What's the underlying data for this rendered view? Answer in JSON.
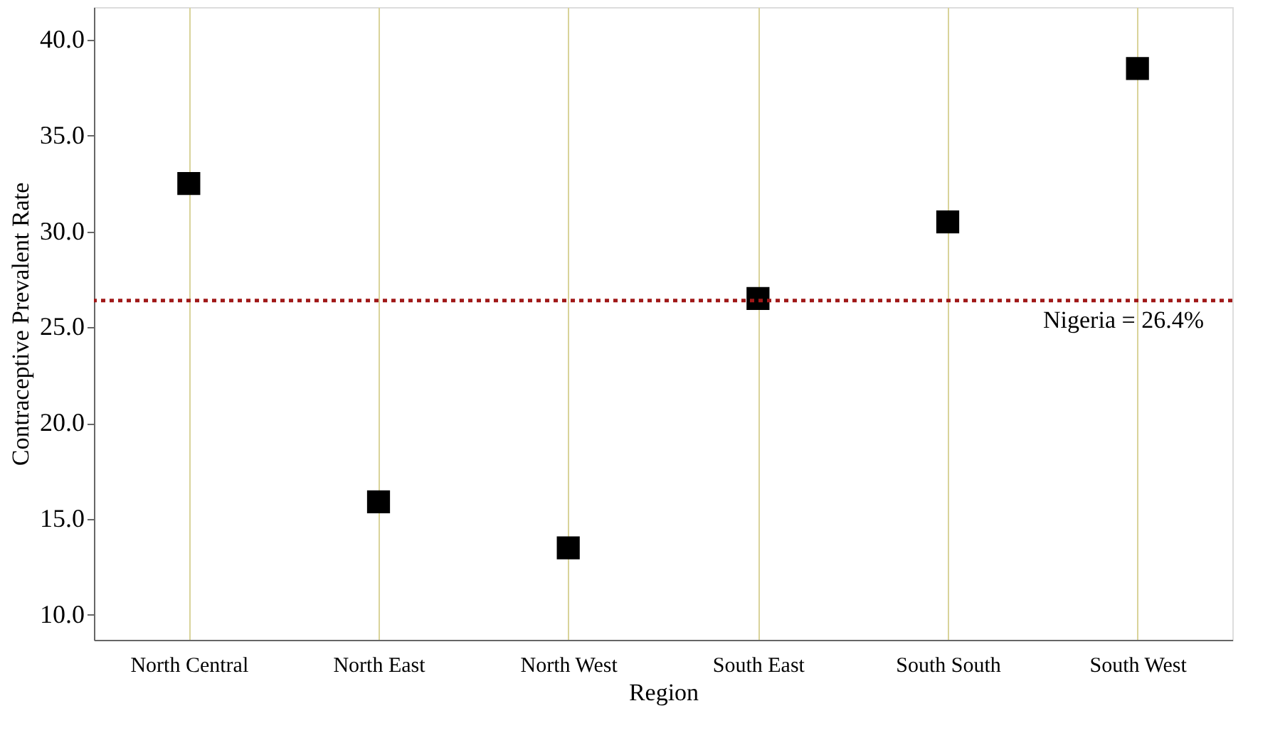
{
  "chart_data": {
    "type": "scatter",
    "xlabel": "Region",
    "ylabel": "Contraceptive Prevalent Rate",
    "categories": [
      "North Central",
      "North East",
      "North West",
      "South East",
      "South South",
      "South West"
    ],
    "values": [
      32.5,
      15.9,
      13.5,
      26.5,
      30.5,
      38.5
    ],
    "color": "#000000",
    "marker": "square",
    "ylim": [
      8.7,
      41.7
    ],
    "yticks": [
      {
        "value": 10,
        "label": "10.0"
      },
      {
        "value": 15,
        "label": "15.0"
      },
      {
        "value": 20,
        "label": "20.0"
      },
      {
        "value": 25,
        "label": "25.0"
      },
      {
        "value": 30,
        "label": "30.0"
      },
      {
        "value": 35,
        "label": "35.0"
      },
      {
        "value": 40,
        "label": "40.0"
      }
    ],
    "grid": "x",
    "ref_lines": [
      {
        "axis": "y",
        "value": 26.4,
        "label": "Nigeria = 26.4%",
        "color": "#a01818",
        "line_style": "dotted"
      }
    ]
  }
}
